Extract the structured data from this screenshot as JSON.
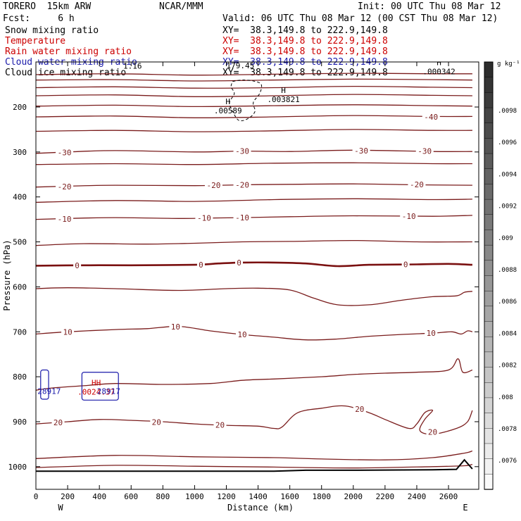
{
  "header": {
    "model": "TORERO  15km ARW",
    "org": "NCAR/MMM",
    "init": "Init: 00 UTC Thu 08 Mar 12",
    "fcst": "Fcst:     6 h",
    "valid": "Valid: 06 UTC Thu 08 Mar 12 (00 CST Thu 08 Mar 12)"
  },
  "fields": [
    {
      "label": "Snow mixing ratio",
      "xy": "XY=  38.3,149.8 to 222.9,149.8",
      "color": "#000000"
    },
    {
      "label": "Temperature",
      "xy": "XY=  38.3,149.8 to 222.9,149.8",
      "color": "#cc0000"
    },
    {
      "label": "Rain water mixing ratio",
      "xy": "XY=  38.3,149.8 to 222.9,149.8",
      "color": "#cc0000"
    },
    {
      "label": "Cloud water mixing ratio",
      "xy": "XY=  38.3,149.8 to 222.9,149.8",
      "color": "#1a1aaa"
    },
    {
      "label": "Cloud ice mixing ratio",
      "xy": "XY=  38.3,149.8 to 222.9,149.8",
      "color": "#000000"
    }
  ],
  "colors": {
    "temp": "#7a1c1c",
    "zero": "#7a1010",
    "wind": "#1a1aaa",
    "red": "#cc0000"
  },
  "chart_data": {
    "type": "cross-section",
    "xlabel": "Distance (km)",
    "ylabel": "Pressure (hPa)",
    "xlim": [
      0,
      2750
    ],
    "ylim": [
      100,
      1050
    ],
    "xticks": [
      0,
      200,
      400,
      600,
      800,
      1000,
      1200,
      1400,
      1600,
      1800,
      2000,
      2200,
      2400,
      2600
    ],
    "yticks": [
      200,
      300,
      400,
      500,
      600,
      700,
      800,
      900,
      1000
    ],
    "x_end_labels": {
      "left": "W",
      "right": "E"
    },
    "colorbar": {
      "units": "g kg⁻¹",
      "ticks": [
        ".0098",
        ".0096",
        ".0094",
        ".0092",
        ".009",
        ".0088",
        ".0086",
        ".0084",
        ".0082",
        ".008",
        ".0078",
        ".0076"
      ]
    },
    "temperature_contours": [
      {
        "value": -50,
        "label": "",
        "points": [
          [
            0,
            128
          ],
          [
            500,
            126
          ],
          [
            1000,
            129
          ],
          [
            1500,
            127
          ],
          [
            2000,
            125
          ],
          [
            2500,
            126
          ],
          [
            2750,
            126
          ]
        ]
      },
      {
        "value": -45,
        "label": "",
        "points": [
          [
            0,
            140
          ],
          [
            500,
            139
          ],
          [
            1000,
            142
          ],
          [
            1500,
            140
          ],
          [
            2000,
            138
          ],
          [
            2500,
            139
          ],
          [
            2750,
            140
          ]
        ]
      },
      {
        "value": -45,
        "label": "",
        "points": [
          [
            0,
            157
          ],
          [
            500,
            155
          ],
          [
            1000,
            158
          ],
          [
            1500,
            157
          ],
          [
            2000,
            154
          ],
          [
            2500,
            156
          ],
          [
            2750,
            157
          ]
        ]
      },
      {
        "value": -45,
        "label": "",
        "points": [
          [
            0,
            175
          ],
          [
            500,
            173
          ],
          [
            1000,
            177
          ],
          [
            1500,
            175
          ],
          [
            2000,
            172
          ],
          [
            2500,
            174
          ],
          [
            2750,
            175
          ]
        ]
      },
      {
        "value": -45,
        "label": "",
        "points": [
          [
            0,
            198
          ],
          [
            500,
            196
          ],
          [
            1000,
            199
          ],
          [
            1500,
            197
          ],
          [
            2000,
            195
          ],
          [
            2500,
            197
          ],
          [
            2750,
            198
          ]
        ]
      },
      {
        "value": -40,
        "label": "-40",
        "points": [
          [
            0,
            222
          ],
          [
            500,
            220
          ],
          [
            1000,
            224
          ],
          [
            1500,
            222
          ],
          [
            2000,
            219
          ],
          [
            2500,
            221
          ],
          [
            2750,
            221
          ]
        ]
      },
      {
        "value": -35,
        "label": "",
        "points": [
          [
            0,
            254
          ],
          [
            500,
            252
          ],
          [
            1000,
            255
          ],
          [
            1500,
            253
          ],
          [
            2000,
            250
          ],
          [
            2500,
            252
          ],
          [
            2750,
            252
          ]
        ]
      },
      {
        "value": -30,
        "label": "-30",
        "points": [
          [
            0,
            303
          ],
          [
            200,
            300
          ],
          [
            500,
            297
          ],
          [
            1000,
            300
          ],
          [
            1300,
            298
          ],
          [
            1600,
            299
          ],
          [
            2000,
            296
          ],
          [
            2500,
            299
          ],
          [
            2750,
            299
          ]
        ]
      },
      {
        "value": -25,
        "label": "",
        "points": [
          [
            0,
            328
          ],
          [
            500,
            326
          ],
          [
            1000,
            328
          ],
          [
            1500,
            325
          ],
          [
            2000,
            324
          ],
          [
            2500,
            326
          ],
          [
            2750,
            326
          ]
        ]
      },
      {
        "value": -20,
        "label": "-20",
        "points": [
          [
            0,
            378
          ],
          [
            200,
            376
          ],
          [
            500,
            374
          ],
          [
            1000,
            375
          ],
          [
            1300,
            373
          ],
          [
            1600,
            372
          ],
          [
            2000,
            371
          ],
          [
            2400,
            373
          ],
          [
            2750,
            374
          ]
        ]
      },
      {
        "value": -15,
        "label": "",
        "points": [
          [
            0,
            412
          ],
          [
            500,
            408
          ],
          [
            1000,
            410
          ],
          [
            1500,
            406
          ],
          [
            2000,
            404
          ],
          [
            2500,
            406
          ],
          [
            2750,
            405
          ]
        ]
      },
      {
        "value": -10,
        "label": "-10",
        "points": [
          [
            0,
            450
          ],
          [
            200,
            448
          ],
          [
            500,
            446
          ],
          [
            900,
            448
          ],
          [
            1100,
            447
          ],
          [
            1300,
            446
          ],
          [
            1600,
            444
          ],
          [
            2000,
            442
          ],
          [
            2500,
            443
          ],
          [
            2750,
            441
          ]
        ]
      },
      {
        "value": -5,
        "label": "",
        "points": [
          [
            0,
            508
          ],
          [
            300,
            504
          ],
          [
            700,
            505
          ],
          [
            1000,
            503
          ],
          [
            1300,
            500
          ],
          [
            1600,
            499
          ],
          [
            2000,
            497
          ],
          [
            2400,
            500
          ],
          [
            2750,
            500
          ]
        ]
      },
      {
        "value": 0,
        "label": "0",
        "points": [
          [
            0,
            553
          ],
          [
            300,
            552
          ],
          [
            600,
            552
          ],
          [
            1000,
            551
          ],
          [
            1150,
            548
          ],
          [
            1300,
            546
          ],
          [
            1500,
            546
          ],
          [
            1700,
            548
          ],
          [
            1900,
            554
          ],
          [
            2100,
            551
          ],
          [
            2400,
            550
          ],
          [
            2600,
            549
          ],
          [
            2750,
            551
          ]
        ]
      },
      {
        "value": 5,
        "label": "",
        "points": [
          [
            0,
            604
          ],
          [
            200,
            602
          ],
          [
            500,
            604
          ],
          [
            900,
            608
          ],
          [
            1200,
            604
          ],
          [
            1400,
            603
          ],
          [
            1600,
            607
          ],
          [
            1750,
            625
          ],
          [
            1900,
            640
          ],
          [
            2100,
            640
          ],
          [
            2300,
            630
          ],
          [
            2500,
            622
          ],
          [
            2650,
            620
          ],
          [
            2700,
            612
          ],
          [
            2750,
            610
          ]
        ]
      },
      {
        "value": 10,
        "label": "10",
        "points": [
          [
            0,
            705
          ],
          [
            200,
            700
          ],
          [
            500,
            695
          ],
          [
            700,
            693
          ],
          [
            900,
            688
          ],
          [
            1100,
            698
          ],
          [
            1300,
            706
          ],
          [
            1500,
            712
          ],
          [
            1700,
            718
          ],
          [
            1900,
            716
          ],
          [
            2100,
            710
          ],
          [
            2300,
            706
          ],
          [
            2500,
            703
          ],
          [
            2620,
            700
          ],
          [
            2680,
            705
          ],
          [
            2720,
            698
          ],
          [
            2750,
            700
          ]
        ]
      },
      {
        "value": 15,
        "label": "",
        "points": [
          [
            0,
            830
          ],
          [
            100,
            825
          ],
          [
            300,
            820
          ],
          [
            500,
            815
          ],
          [
            800,
            817
          ],
          [
            1100,
            815
          ],
          [
            1300,
            808
          ],
          [
            1500,
            805
          ],
          [
            1800,
            800
          ],
          [
            2000,
            795
          ],
          [
            2200,
            792
          ],
          [
            2400,
            790
          ],
          [
            2600,
            785
          ],
          [
            2660,
            760
          ],
          [
            2690,
            790
          ],
          [
            2750,
            785
          ]
        ]
      },
      {
        "value": 20,
        "label": "20",
        "points": [
          [
            0,
            905
          ],
          [
            200,
            900
          ],
          [
            400,
            895
          ],
          [
            600,
            897
          ],
          [
            800,
            900
          ],
          [
            1000,
            905
          ],
          [
            1200,
            908
          ],
          [
            1400,
            910
          ],
          [
            1500,
            915
          ],
          [
            1550,
            912
          ],
          [
            1650,
            880
          ],
          [
            1800,
            870
          ],
          [
            1950,
            865
          ],
          [
            2100,
            880
          ],
          [
            2200,
            895
          ],
          [
            2350,
            915
          ],
          [
            2400,
            905
          ],
          [
            2450,
            880
          ],
          [
            2500,
            875
          ],
          [
            2450,
            895
          ],
          [
            2420,
            920
          ],
          [
            2500,
            928
          ],
          [
            2650,
            915
          ],
          [
            2720,
            900
          ],
          [
            2750,
            875
          ]
        ]
      },
      {
        "value": 25,
        "label": "",
        "points": [
          [
            0,
            982
          ],
          [
            500,
            975
          ],
          [
            1000,
            978
          ],
          [
            1500,
            980
          ],
          [
            1800,
            983
          ],
          [
            2200,
            985
          ],
          [
            2500,
            980
          ],
          [
            2700,
            970
          ],
          [
            2750,
            965
          ]
        ]
      },
      {
        "value": 30,
        "label": "",
        "points": [
          [
            0,
            1002
          ],
          [
            500,
            997
          ],
          [
            1000,
            999
          ],
          [
            1500,
            1001
          ],
          [
            2000,
            1003
          ],
          [
            2500,
            1000
          ],
          [
            2700,
            998
          ],
          [
            2750,
            995
          ]
        ]
      }
    ],
    "temperature_labels": [
      {
        "text": "-40",
        "x": 2490,
        "p": 222
      },
      {
        "text": "-30",
        "x": 180,
        "p": 301
      },
      {
        "text": "-30",
        "x": 1300,
        "p": 298
      },
      {
        "text": "-30",
        "x": 2050,
        "p": 297
      },
      {
        "text": "-30",
        "x": 2450,
        "p": 298
      },
      {
        "text": "-20",
        "x": 180,
        "p": 377
      },
      {
        "text": "-20",
        "x": 1120,
        "p": 374
      },
      {
        "text": "-20",
        "x": 1300,
        "p": 373
      },
      {
        "text": "-20",
        "x": 2400,
        "p": 372
      },
      {
        "text": "-10",
        "x": 180,
        "p": 449
      },
      {
        "text": "-10",
        "x": 1060,
        "p": 447
      },
      {
        "text": "-10",
        "x": 1300,
        "p": 446
      },
      {
        "text": "-10",
        "x": 2350,
        "p": 443
      },
      {
        "text": "0",
        "x": 260,
        "p": 552
      },
      {
        "text": "0",
        "x": 1040,
        "p": 551
      },
      {
        "text": "0",
        "x": 1280,
        "p": 546
      },
      {
        "text": "0",
        "x": 2330,
        "p": 550
      },
      {
        "text": "10",
        "x": 200,
        "p": 700
      },
      {
        "text": "10",
        "x": 880,
        "p": 689
      },
      {
        "text": "10",
        "x": 1300,
        "p": 706
      },
      {
        "text": "10",
        "x": 2490,
        "p": 703
      },
      {
        "text": "20",
        "x": 140,
        "p": 902
      },
      {
        "text": "20",
        "x": 760,
        "p": 901
      },
      {
        "text": "20",
        "x": 1160,
        "p": 907
      },
      {
        "text": "20",
        "x": 2040,
        "p": 872
      },
      {
        "text": "20",
        "x": 2500,
        "p": 923
      }
    ],
    "cloud_ice_contour": {
      "points": [
        [
          1240,
          143
        ],
        [
          1300,
          140
        ],
        [
          1370,
          142
        ],
        [
          1420,
          150
        ],
        [
          1410,
          170
        ],
        [
          1370,
          190
        ],
        [
          1380,
          210
        ],
        [
          1340,
          225
        ],
        [
          1280,
          230
        ],
        [
          1240,
          210
        ],
        [
          1220,
          190
        ],
        [
          1250,
          170
        ],
        [
          1230,
          155
        ],
        [
          1240,
          143
        ]
      ]
    },
    "extrema": [
      {
        "mark": "H",
        "value": ".00589",
        "x": 1210,
        "p": 205,
        "color": "#000000"
      },
      {
        "mark": "H",
        "value": ".003821",
        "x": 1560,
        "p": 180,
        "color": "#000000"
      },
      {
        "mark": "H",
        "value": ".000342",
        "x": 2540,
        "p": 118,
        "color": "#000000"
      },
      {
        "mark": "HH",
        "value": ".0024.37",
        "x": 380,
        "p": 830,
        "color": "#cc0000"
      }
    ],
    "overlay_text": [
      {
        "text": "179.45",
        "x": 1200,
        "p": 114,
        "color": "#000000"
      },
      {
        "text": "1.16",
        "x": 550,
        "p": 115,
        "color": "#000000"
      },
      {
        "text": "28917",
        "x": 10,
        "p": 838,
        "color": "#1a1aaa"
      },
      {
        "text": "28917",
        "x": 385,
        "p": 838,
        "color": "#1a1aaa"
      }
    ],
    "cloud_water_boxes": [
      {
        "x0": 30,
        "x1": 80,
        "p0": 785,
        "p1": 850
      },
      {
        "x0": 290,
        "x1": 520,
        "p0": 790,
        "p1": 852
      }
    ],
    "terrain": [
      [
        0,
        1010
      ],
      [
        1500,
        1010
      ],
      [
        1700,
        1008
      ],
      [
        2000,
        1008
      ],
      [
        2500,
        1007
      ],
      [
        2650,
        1006
      ],
      [
        2700,
        985
      ],
      [
        2750,
        1005
      ]
    ]
  }
}
